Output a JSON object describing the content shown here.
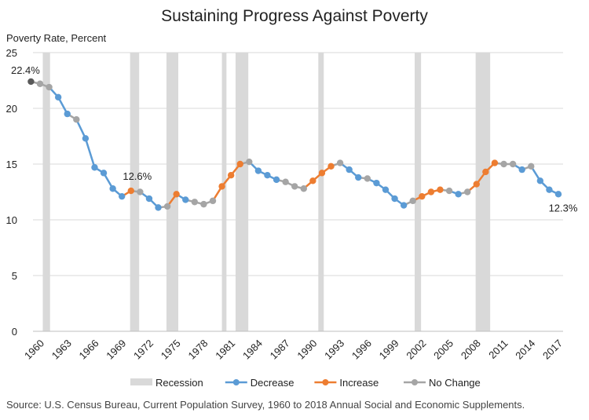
{
  "chart_data": {
    "type": "line",
    "title": "Sustaining Progress Against Poverty",
    "ylabel": "Poverty Rate, Percent",
    "xlabel": "",
    "ylim": [
      0,
      25
    ],
    "yticks": [
      0,
      5,
      10,
      15,
      20,
      25
    ],
    "xlim": [
      1959.5,
      2017.5
    ],
    "xticks": [
      1960,
      1963,
      1966,
      1969,
      1972,
      1975,
      1978,
      1981,
      1984,
      1987,
      1990,
      1993,
      1996,
      1999,
      2002,
      2005,
      2008,
      2011,
      2014,
      2017
    ],
    "grid": true,
    "legend_position": "bottom",
    "colors": {
      "recession": "#d9d9d9",
      "decrease": "#5b9bd5",
      "increase": "#ed7d31",
      "no_change": "#a5a5a5",
      "first": "#595959"
    },
    "legend": [
      {
        "key": "recession",
        "label": "Recession"
      },
      {
        "key": "decrease",
        "label": "Decrease"
      },
      {
        "key": "increase",
        "label": "Increase"
      },
      {
        "key": "no_change",
        "label": "No Change"
      }
    ],
    "recessions": [
      [
        1960.3,
        1961.1
      ],
      [
        1969.9,
        1970.9
      ],
      [
        1973.9,
        1975.2
      ],
      [
        1980.0,
        1980.5
      ],
      [
        1981.5,
        1982.9
      ],
      [
        1990.6,
        1991.2
      ],
      [
        2001.2,
        2001.9
      ],
      [
        2007.9,
        2009.5
      ]
    ],
    "points": [
      {
        "x": 1959,
        "y": 22.4,
        "c": "first"
      },
      {
        "x": 1960,
        "y": 22.2,
        "c": "no_change"
      },
      {
        "x": 1961,
        "y": 21.9,
        "c": "no_change"
      },
      {
        "x": 1962,
        "y": 21.0,
        "c": "decrease"
      },
      {
        "x": 1963,
        "y": 19.5,
        "c": "decrease"
      },
      {
        "x": 1964,
        "y": 19.0,
        "c": "no_change"
      },
      {
        "x": 1965,
        "y": 17.3,
        "c": "decrease"
      },
      {
        "x": 1966,
        "y": 14.7,
        "c": "decrease"
      },
      {
        "x": 1967,
        "y": 14.2,
        "c": "decrease"
      },
      {
        "x": 1968,
        "y": 12.8,
        "c": "decrease"
      },
      {
        "x": 1969,
        "y": 12.1,
        "c": "decrease"
      },
      {
        "x": 1970,
        "y": 12.6,
        "c": "increase"
      },
      {
        "x": 1971,
        "y": 12.5,
        "c": "no_change"
      },
      {
        "x": 1972,
        "y": 11.9,
        "c": "decrease"
      },
      {
        "x": 1973,
        "y": 11.1,
        "c": "decrease"
      },
      {
        "x": 1974,
        "y": 11.2,
        "c": "no_change"
      },
      {
        "x": 1975,
        "y": 12.3,
        "c": "increase"
      },
      {
        "x": 1976,
        "y": 11.8,
        "c": "decrease"
      },
      {
        "x": 1977,
        "y": 11.6,
        "c": "no_change"
      },
      {
        "x": 1978,
        "y": 11.4,
        "c": "no_change"
      },
      {
        "x": 1979,
        "y": 11.7,
        "c": "no_change"
      },
      {
        "x": 1980,
        "y": 13.0,
        "c": "increase"
      },
      {
        "x": 1981,
        "y": 14.0,
        "c": "increase"
      },
      {
        "x": 1982,
        "y": 15.0,
        "c": "increase"
      },
      {
        "x": 1983,
        "y": 15.2,
        "c": "no_change"
      },
      {
        "x": 1984,
        "y": 14.4,
        "c": "decrease"
      },
      {
        "x": 1985,
        "y": 14.0,
        "c": "decrease"
      },
      {
        "x": 1986,
        "y": 13.6,
        "c": "decrease"
      },
      {
        "x": 1987,
        "y": 13.4,
        "c": "no_change"
      },
      {
        "x": 1988,
        "y": 13.0,
        "c": "no_change"
      },
      {
        "x": 1989,
        "y": 12.8,
        "c": "no_change"
      },
      {
        "x": 1990,
        "y": 13.5,
        "c": "increase"
      },
      {
        "x": 1991,
        "y": 14.2,
        "c": "increase"
      },
      {
        "x": 1992,
        "y": 14.8,
        "c": "increase"
      },
      {
        "x": 1993,
        "y": 15.1,
        "c": "no_change"
      },
      {
        "x": 1994,
        "y": 14.5,
        "c": "decrease"
      },
      {
        "x": 1995,
        "y": 13.8,
        "c": "decrease"
      },
      {
        "x": 1996,
        "y": 13.7,
        "c": "no_change"
      },
      {
        "x": 1997,
        "y": 13.3,
        "c": "decrease"
      },
      {
        "x": 1998,
        "y": 12.7,
        "c": "decrease"
      },
      {
        "x": 1999,
        "y": 11.9,
        "c": "decrease"
      },
      {
        "x": 2000,
        "y": 11.3,
        "c": "decrease"
      },
      {
        "x": 2001,
        "y": 11.7,
        "c": "no_change"
      },
      {
        "x": 2002,
        "y": 12.1,
        "c": "increase"
      },
      {
        "x": 2003,
        "y": 12.5,
        "c": "increase"
      },
      {
        "x": 2004,
        "y": 12.7,
        "c": "increase"
      },
      {
        "x": 2005,
        "y": 12.6,
        "c": "no_change"
      },
      {
        "x": 2006,
        "y": 12.3,
        "c": "decrease"
      },
      {
        "x": 2007,
        "y": 12.5,
        "c": "no_change"
      },
      {
        "x": 2008,
        "y": 13.2,
        "c": "increase"
      },
      {
        "x": 2009,
        "y": 14.3,
        "c": "increase"
      },
      {
        "x": 2010,
        "y": 15.1,
        "c": "increase"
      },
      {
        "x": 2011,
        "y": 15.0,
        "c": "no_change"
      },
      {
        "x": 2012,
        "y": 15.0,
        "c": "no_change"
      },
      {
        "x": 2013,
        "y": 14.5,
        "c": "decrease"
      },
      {
        "x": 2014,
        "y": 14.8,
        "c": "no_change"
      },
      {
        "x": 2015,
        "y": 13.5,
        "c": "decrease"
      },
      {
        "x": 2016,
        "y": 12.7,
        "c": "decrease"
      },
      {
        "x": 2017,
        "y": 12.3,
        "c": "decrease"
      }
    ],
    "annotations": [
      {
        "x": 1959,
        "y": 22.4,
        "text": "22.4%"
      },
      {
        "x": 1970,
        "y": 12.6,
        "text": "12.6%"
      },
      {
        "x": 2017,
        "y": 12.3,
        "text": "12.3%"
      }
    ]
  },
  "source_note": "Source: U.S. Census Bureau, Current Population Survey, 1960 to 2018 Annual Social and Economic Supplements."
}
